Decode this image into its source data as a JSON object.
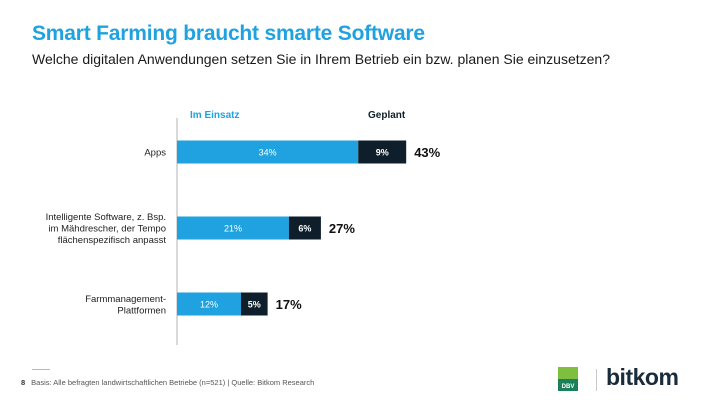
{
  "header": {
    "title": "Smart Farming braucht smarte Software",
    "subtitle": "Welche digitalen Anwendungen setzen Sie in Ihrem Betrieb ein bzw. planen Sie einzusetzen?"
  },
  "footer": {
    "page": "8",
    "note": "Basis: Alle befragten landwirtschaftlichen Betriebe (n=521) | Quelle: Bitkom Research"
  },
  "logos": {
    "dbv": "DBV",
    "bitkom": "bitkom"
  },
  "colors": {
    "in_use": "#1fa2df",
    "planned": "#0e1f2b",
    "title": "#1fa2df"
  },
  "chart_data": {
    "type": "bar",
    "orientation": "horizontal",
    "stacked": true,
    "categories": [
      [
        "Apps"
      ],
      [
        "Intelligente Software, z. Bsp.",
        "im Mähdrescher, der Tempo",
        "flächenspezifisch anpasst"
      ],
      [
        "Farmmanagement-",
        "Plattformen"
      ]
    ],
    "series": [
      {
        "name": "Im Einsatz",
        "values": [
          34,
          21,
          12
        ],
        "labels": [
          "34%",
          "21%",
          "12%"
        ]
      },
      {
        "name": "Geplant",
        "values": [
          9,
          6,
          5
        ],
        "labels": [
          "9%",
          "6%",
          "5%"
        ]
      }
    ],
    "totals": [
      "43%",
      "27%",
      "17%"
    ],
    "xlim": [
      0,
      100
    ]
  }
}
